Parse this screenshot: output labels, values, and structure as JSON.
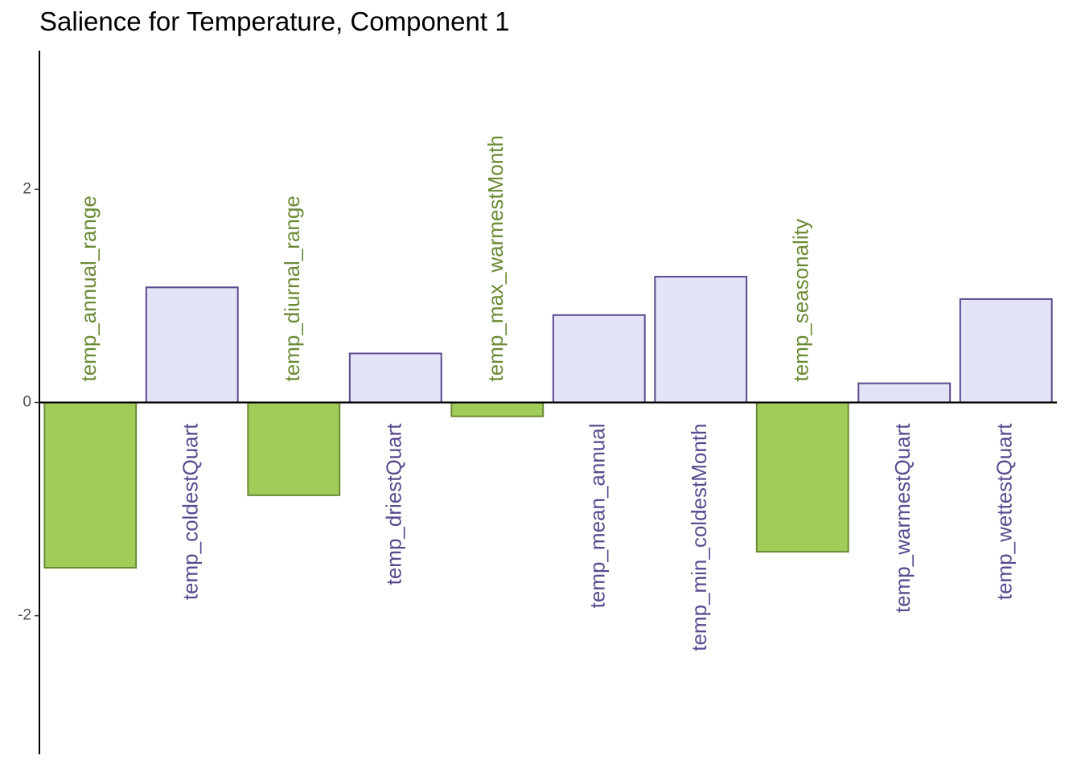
{
  "chart_data": {
    "type": "bar",
    "title": "Salience for Temperature, Component 1",
    "xlabel": "",
    "ylabel": "",
    "ylim": [
      -3.3,
      3.3
    ],
    "yticks": [
      -2,
      0,
      2
    ],
    "ytick_labels": [
      "-2",
      "0",
      "2"
    ],
    "grid": false,
    "legend": "none",
    "categories": [
      "temp_annual_range",
      "temp_coldestQuart",
      "temp_diurnal_range",
      "temp_driestQuart",
      "temp_max_warmestMonth",
      "temp_mean_annual",
      "temp_min_coldestMonth",
      "temp_seasonality",
      "temp_warmestQuart",
      "temp_wettestQuart"
    ],
    "values": [
      -1.55,
      1.08,
      -0.87,
      0.46,
      -0.13,
      0.82,
      1.18,
      -1.4,
      0.18,
      0.97
    ],
    "colors": {
      "negative_fill": "#a2cc5a",
      "negative_stroke": "#6b8a35",
      "negative_label": "#6b8a35",
      "positive_fill": "#e4e4f8",
      "positive_stroke": "#5a4a8e",
      "positive_label": "#5a4a8e",
      "axis": "#000000"
    }
  }
}
